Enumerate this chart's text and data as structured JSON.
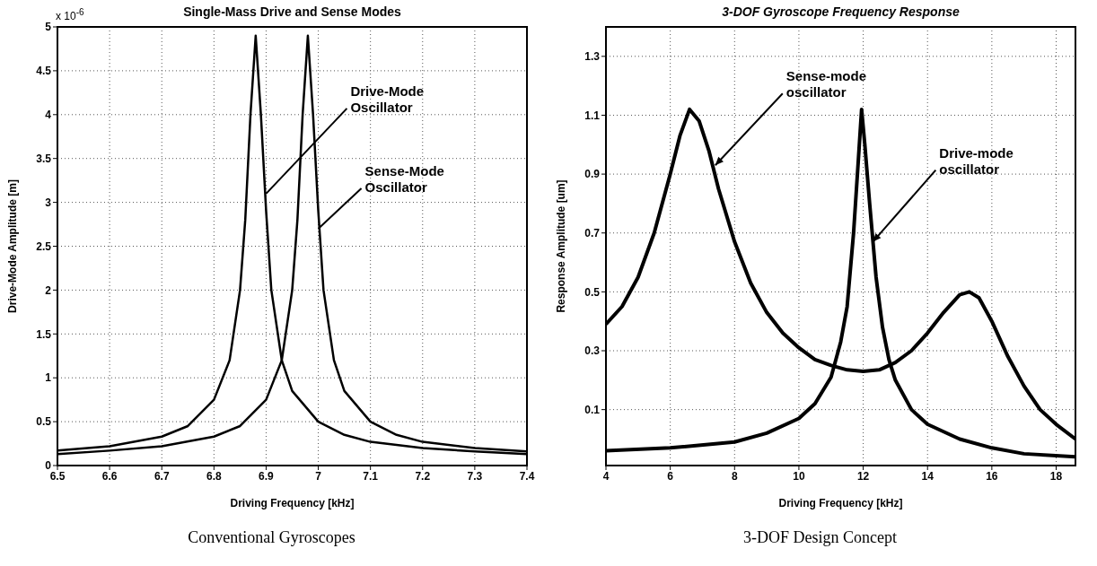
{
  "chart_data": [
    {
      "type": "line",
      "title": "Single-Mass Drive and Sense Modes",
      "xlabel": "Driving Frequency [kHz]",
      "ylabel": "Drive-Mode Amplitude [m]",
      "xlim": [
        6.5,
        7.4
      ],
      "ylim": [
        0,
        5
      ],
      "xticks": [
        6.5,
        6.6,
        6.7,
        6.8,
        6.9,
        7,
        7.1,
        7.2,
        7.3,
        7.4
      ],
      "yticks": [
        0,
        0.5,
        1,
        1.5,
        2,
        2.5,
        3,
        3.5,
        4,
        4.5,
        5
      ],
      "grid": true,
      "marker": "none",
      "line_style": "solid",
      "series": [
        {
          "color": "#000000",
          "x": [
            6.5,
            6.6,
            6.7,
            6.75,
            6.8,
            6.83,
            6.85,
            6.86,
            6.87,
            6.88,
            6.89,
            6.9,
            6.91,
            6.93,
            6.95,
            7.0,
            7.05,
            7.1,
            7.2,
            7.3,
            7.4
          ],
          "values": [
            0.17,
            0.22,
            0.33,
            0.45,
            0.75,
            1.2,
            2.0,
            2.8,
            4.0,
            4.9,
            4.0,
            2.9,
            2.0,
            1.2,
            0.85,
            0.5,
            0.35,
            0.27,
            0.2,
            0.16,
            0.13
          ]
        },
        {
          "color": "#000000",
          "x": [
            6.5,
            6.6,
            6.7,
            6.8,
            6.85,
            6.9,
            6.93,
            6.95,
            6.96,
            6.97,
            6.98,
            6.99,
            7.0,
            7.01,
            7.03,
            7.05,
            7.1,
            7.15,
            7.2,
            7.3,
            7.4
          ],
          "values": [
            0.13,
            0.17,
            0.22,
            0.33,
            0.45,
            0.75,
            1.2,
            2.0,
            2.8,
            4.0,
            4.9,
            4.0,
            2.9,
            2.0,
            1.2,
            0.85,
            0.5,
            0.35,
            0.27,
            0.2,
            0.16
          ]
        }
      ],
      "annotations": [
        "x 10$^{-6}$",
        {
          "text": "Drive-Mode\nOscillator",
          "x": 6.9,
          "y": 3.1
        },
        {
          "text": "Sense-Mode\nOscillator",
          "x": 7.0,
          "y": 2.7
        },
        "Conventional Gyroscopes"
      ]
    },
    {
      "type": "line",
      "title": "3-DOF Gyroscope Frequency Response",
      "xlabel": "Driving Frequency [kHz]",
      "ylabel": "Response Amplitude [um]",
      "xlim": [
        4,
        18.6
      ],
      "ylim": [
        -0.09,
        1.4
      ],
      "xticks": [
        4,
        6,
        8,
        10,
        12,
        14,
        16,
        18
      ],
      "yticks": [
        0.1,
        0.3,
        0.5,
        0.7,
        0.9,
        1.1,
        1.3
      ],
      "grid": true,
      "marker": "none",
      "line_style": "solid",
      "series": [
        {
          "color": "#000000",
          "x": [
            4,
            4.5,
            5,
            5.5,
            6,
            6.3,
            6.6,
            6.9,
            7.2,
            7.5,
            8,
            8.5,
            9,
            9.5,
            10,
            10.5,
            11,
            11.5,
            12,
            12.5,
            13,
            13.5,
            14,
            14.5,
            15,
            15.3,
            15.6,
            16,
            16.5,
            17,
            17.5,
            18,
            18.6
          ],
          "values": [
            0.39,
            0.45,
            0.55,
            0.7,
            0.9,
            1.03,
            1.12,
            1.08,
            0.98,
            0.85,
            0.67,
            0.53,
            0.43,
            0.36,
            0.31,
            0.27,
            0.25,
            0.235,
            0.23,
            0.235,
            0.26,
            0.3,
            0.36,
            0.43,
            0.49,
            0.5,
            0.48,
            0.4,
            0.28,
            0.18,
            0.1,
            0.05,
            0.0
          ]
        },
        {
          "color": "#000000",
          "x": [
            4,
            6,
            8,
            9,
            10,
            10.5,
            11,
            11.3,
            11.5,
            11.7,
            11.85,
            11.95,
            12.05,
            12.2,
            12.4,
            12.6,
            12.8,
            13,
            13.5,
            14,
            15,
            16,
            17,
            18.6
          ],
          "values": [
            -0.04,
            -0.03,
            -0.01,
            0.02,
            0.07,
            0.12,
            0.21,
            0.33,
            0.45,
            0.7,
            0.95,
            1.12,
            1.0,
            0.8,
            0.55,
            0.38,
            0.27,
            0.2,
            0.1,
            0.05,
            0.0,
            -0.03,
            -0.05,
            -0.06
          ]
        }
      ],
      "annotations": [
        {
          "text": "Sense-mode\noscillator",
          "x": 7.4,
          "y": 0.93
        },
        {
          "text": "Drive-mode\noscillator",
          "x": 12.3,
          "y": 0.67
        },
        "3-DOF Design Concept"
      ]
    }
  ]
}
